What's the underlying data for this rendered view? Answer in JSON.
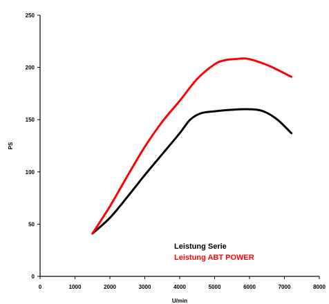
{
  "chart_data": {
    "type": "line",
    "xlabel": "U/min",
    "ylabel": "PS",
    "xlim": [
      0,
      8000
    ],
    "ylim": [
      0,
      250
    ],
    "xticks": [
      0,
      1000,
      2000,
      3000,
      4000,
      5000,
      6000,
      7000,
      8000
    ],
    "yticks": [
      0,
      50,
      100,
      150,
      200,
      250
    ],
    "grid": false,
    "legend_position": "bottom-right",
    "series": [
      {
        "name": "Leistung Serie",
        "color": "#000000",
        "x": [
          1500,
          2000,
          2500,
          3000,
          3500,
          4000,
          4300,
          4600,
          5000,
          5500,
          6000,
          6400,
          6800,
          7200
        ],
        "y": [
          41,
          56,
          76,
          97,
          117,
          137,
          150,
          156,
          158,
          159.5,
          160,
          158,
          150,
          137
        ]
      },
      {
        "name": "Leistung ABT POWER",
        "color": "#ff0000",
        "x": [
          1500,
          2000,
          2500,
          3000,
          3500,
          4000,
          4500,
          5000,
          5300,
          5600,
          5900,
          6200,
          6600,
          7200
        ],
        "y": [
          41,
          67,
          96,
          124,
          148,
          168,
          189,
          203,
          207,
          208,
          208.5,
          206,
          201,
          191
        ]
      }
    ]
  }
}
